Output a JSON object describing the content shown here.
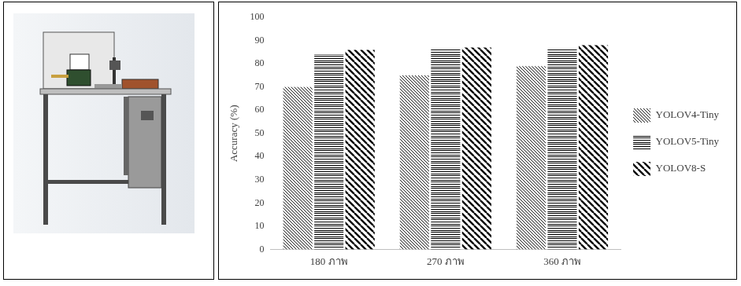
{
  "chart_data": {
    "type": "bar",
    "y_label": "Accuracy (%)",
    "categories": [
      "180 ภาพ",
      "270 ภาพ",
      "360 ภาพ"
    ],
    "series": [
      {
        "name": "YOLOV4-Tiny",
        "color": "#000000",
        "values": [
          70,
          75,
          79
        ]
      },
      {
        "name": "YOLOV5-Tiny",
        "color": "#000000",
        "values": [
          84,
          86.5,
          86.5
        ]
      },
      {
        "name": "YOLOV8-S",
        "color": "#000000",
        "values": [
          86,
          87,
          88
        ]
      }
    ],
    "ylim": [
      0,
      100
    ],
    "yticks": [
      0,
      10,
      20,
      30,
      40,
      50,
      60,
      70,
      80,
      90,
      100
    ],
    "grid": false,
    "legend": "right"
  }
}
